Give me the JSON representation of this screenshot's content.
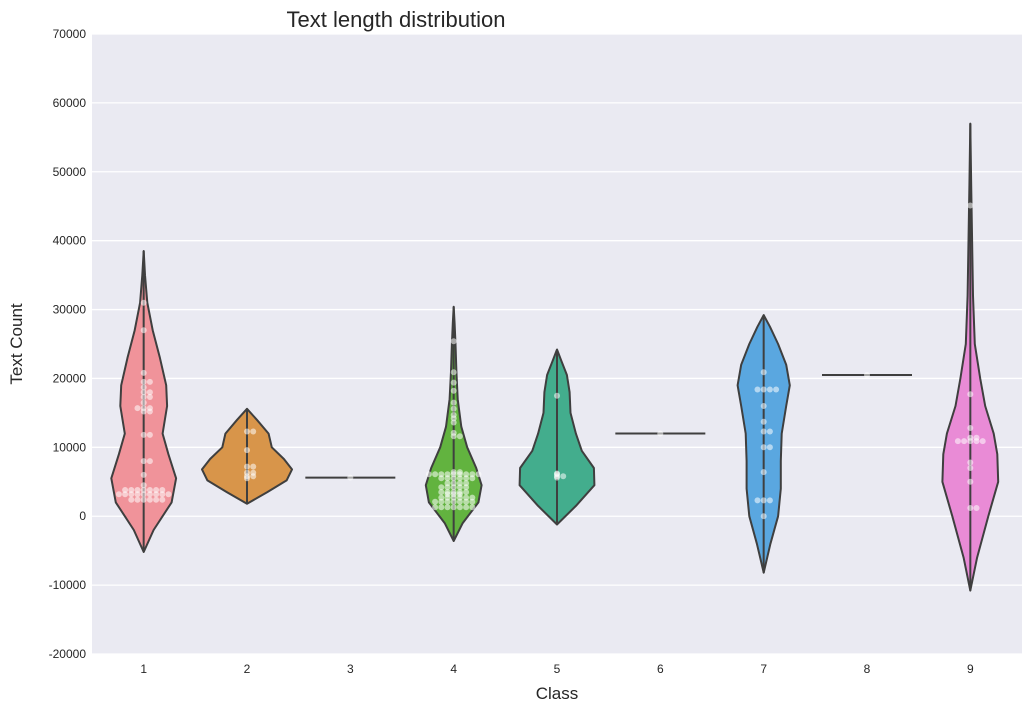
{
  "chart_data": {
    "type": "violin",
    "title": "Text length distribution",
    "xlabel": "Class",
    "ylabel": "Text Count",
    "ylim": [
      -20000,
      70000
    ],
    "yticks": [
      -20000,
      -10000,
      0,
      10000,
      20000,
      30000,
      40000,
      50000,
      60000,
      70000
    ],
    "grid": true,
    "categories": [
      "1",
      "2",
      "3",
      "4",
      "5",
      "6",
      "7",
      "8",
      "9"
    ],
    "colors": [
      "#f0939a",
      "#d8954a",
      "#b5a74a",
      "#62b33f",
      "#43ad8d",
      "#4ab0b5",
      "#5aa7e0",
      "#a98ae2",
      "#e98bd6"
    ],
    "violins": [
      {
        "min": -5200,
        "max": 38500,
        "profile": [
          [
            -5200,
            0
          ],
          [
            -2000,
            0.22
          ],
          [
            2000,
            0.62
          ],
          [
            5500,
            0.72
          ],
          [
            9000,
            0.55
          ],
          [
            12000,
            0.42
          ],
          [
            16000,
            0.52
          ],
          [
            19000,
            0.5
          ],
          [
            23000,
            0.36
          ],
          [
            27000,
            0.2
          ],
          [
            31000,
            0.08
          ],
          [
            35000,
            0.03
          ],
          [
            38500,
            0
          ]
        ]
      },
      {
        "min": 1800,
        "max": 15600,
        "profile": [
          [
            1800,
            0
          ],
          [
            3500,
            0.45
          ],
          [
            5200,
            0.88
          ],
          [
            6800,
            1.0
          ],
          [
            8300,
            0.82
          ],
          [
            10000,
            0.55
          ],
          [
            12000,
            0.48
          ],
          [
            14000,
            0.22
          ],
          [
            15600,
            0
          ]
        ]
      },
      {
        "min": 5600,
        "max": 5600,
        "profile": []
      },
      {
        "min": -3600,
        "max": 30400,
        "profile": [
          [
            -3600,
            0
          ],
          [
            -1000,
            0.2
          ],
          [
            2000,
            0.55
          ],
          [
            4500,
            0.62
          ],
          [
            7000,
            0.5
          ],
          [
            10000,
            0.3
          ],
          [
            13000,
            0.17
          ],
          [
            17000,
            0.09
          ],
          [
            21000,
            0.06
          ],
          [
            25000,
            0.04
          ],
          [
            28000,
            0.02
          ],
          [
            30400,
            0
          ]
        ]
      },
      {
        "min": -1200,
        "max": 24200,
        "profile": [
          [
            -1200,
            0
          ],
          [
            1500,
            0.42
          ],
          [
            4500,
            0.83
          ],
          [
            7000,
            0.82
          ],
          [
            9500,
            0.55
          ],
          [
            12000,
            0.42
          ],
          [
            15000,
            0.3
          ],
          [
            18000,
            0.28
          ],
          [
            20500,
            0.22
          ],
          [
            22500,
            0.1
          ],
          [
            24200,
            0
          ]
        ]
      },
      {
        "min": 12000,
        "max": 12000,
        "profile": []
      },
      {
        "min": -8200,
        "max": 29200,
        "profile": [
          [
            -8200,
            0
          ],
          [
            -4000,
            0.15
          ],
          [
            0,
            0.32
          ],
          [
            4000,
            0.38
          ],
          [
            8000,
            0.38
          ],
          [
            12000,
            0.4
          ],
          [
            16000,
            0.5
          ],
          [
            19000,
            0.58
          ],
          [
            22000,
            0.5
          ],
          [
            25000,
            0.32
          ],
          [
            27500,
            0.14
          ],
          [
            29200,
            0
          ]
        ]
      },
      {
        "min": 20500,
        "max": 20500,
        "profile": []
      },
      {
        "min": -10800,
        "max": 57000,
        "profile": [
          [
            -10800,
            0
          ],
          [
            -6000,
            0.15
          ],
          [
            0,
            0.4
          ],
          [
            5000,
            0.62
          ],
          [
            9000,
            0.6
          ],
          [
            12000,
            0.52
          ],
          [
            16000,
            0.33
          ],
          [
            20000,
            0.22
          ],
          [
            25000,
            0.1
          ],
          [
            32000,
            0.06
          ],
          [
            40000,
            0.04
          ],
          [
            48000,
            0.02
          ],
          [
            57000,
            0
          ]
        ]
      }
    ],
    "points": [
      {
        "category": "1",
        "values": [
          2400,
          2400,
          2400,
          2400,
          2400,
          2400,
          3200,
          3200,
          3200,
          3200,
          3200,
          3200,
          3200,
          3200,
          3200,
          3800,
          3800,
          3800,
          3800,
          3800,
          3800,
          3800,
          4500,
          6000,
          8000,
          8000,
          11800,
          11800,
          15200,
          15200,
          15700,
          15700,
          15700,
          16500,
          17300,
          17300,
          18000,
          18000,
          18700,
          19500,
          19500,
          20800,
          27000,
          31000
        ]
      },
      {
        "category": "2",
        "values": [
          5500,
          5800,
          5800,
          6300,
          6300,
          7200,
          7200,
          9600,
          12300,
          12300
        ]
      },
      {
        "category": "3",
        "values": [
          5600
        ]
      },
      {
        "category": "4",
        "values": [
          1300,
          1300,
          1300,
          1300,
          1300,
          1300,
          1300,
          2100,
          2100,
          2100,
          2100,
          2100,
          2100,
          2100,
          2700,
          2700,
          2700,
          2700,
          2700,
          2700,
          3200,
          3200,
          3200,
          3500,
          3500,
          3500,
          3500,
          3500,
          4200,
          4200,
          4200,
          4200,
          4200,
          4800,
          4800,
          4800,
          4800,
          5500,
          5500,
          5500,
          5500,
          5500,
          5500,
          6100,
          6100,
          6100,
          6100,
          6100,
          6100,
          6100,
          6100,
          6100,
          6400,
          6400,
          11600,
          11600,
          12100,
          13600,
          14200,
          14700,
          15600,
          16500,
          18200,
          19400,
          20900,
          25400
        ]
      },
      {
        "category": "5",
        "values": [
          5600,
          5800,
          5800,
          6100,
          6200,
          17500
        ]
      },
      {
        "category": "6",
        "values": [
          12000
        ]
      },
      {
        "category": "7",
        "values": [
          0,
          2300,
          2300,
          2300,
          6400,
          10000,
          10000,
          12300,
          12300,
          13700,
          16000,
          18400,
          18400,
          18400,
          18400,
          20900
        ]
      },
      {
        "category": "8",
        "values": [
          20500
        ]
      },
      {
        "category": "9",
        "values": [
          1200,
          1200,
          5000,
          7000,
          7800,
          10900,
          10900,
          10900,
          10900,
          10900,
          11400,
          11400,
          12800,
          17700,
          45100
        ]
      }
    ]
  }
}
